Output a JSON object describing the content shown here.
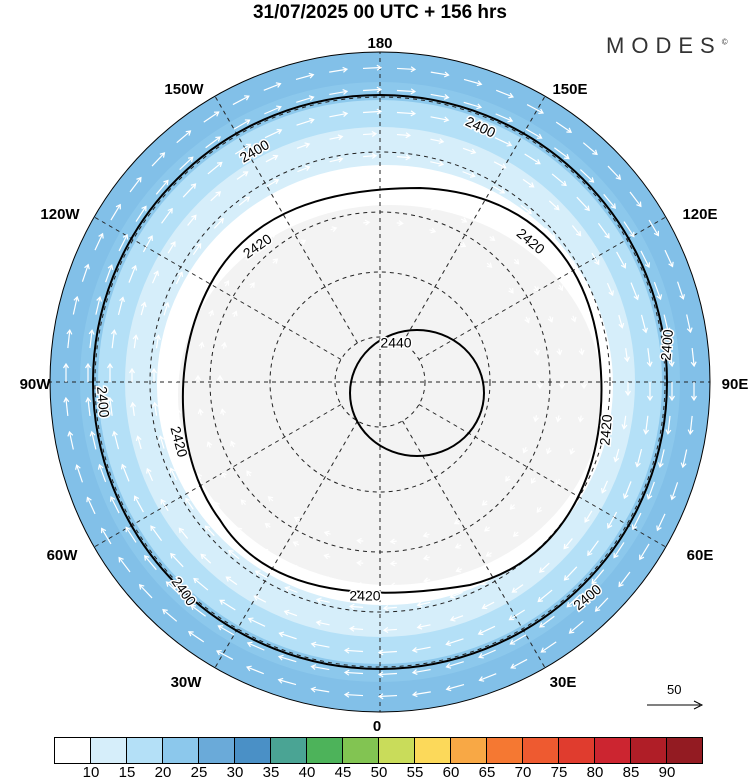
{
  "title": "31/07/2025  00 UTC  + 156 hrs",
  "logo": "MODES",
  "logo_mark": "©",
  "longitude_labels": [
    "180",
    "150E",
    "120E",
    "90E",
    "60E",
    "30E",
    "0",
    "30W",
    "60W",
    "90W",
    "120W",
    "150W"
  ],
  "contour_labels": {
    "c2400": "2400",
    "c2420": "2420",
    "c2440": "2440"
  },
  "reference_vector": {
    "label": "50"
  },
  "colorbar": {
    "labels": [
      "10",
      "15",
      "20",
      "25",
      "30",
      "35",
      "40",
      "45",
      "50",
      "55",
      "60",
      "65",
      "70",
      "75",
      "80",
      "85",
      "90"
    ],
    "colors": [
      "#ffffff",
      "#d6eefa",
      "#b4e0f7",
      "#8cc8ec",
      "#6aaad9",
      "#4a90c6",
      "#4aa494",
      "#4db35a",
      "#82c452",
      "#c9dc5a",
      "#fcd95a",
      "#f8a845",
      "#f57832",
      "#ee5a30",
      "#e03c2e",
      "#cc2530",
      "#b01e27",
      "#931b22"
    ]
  }
}
